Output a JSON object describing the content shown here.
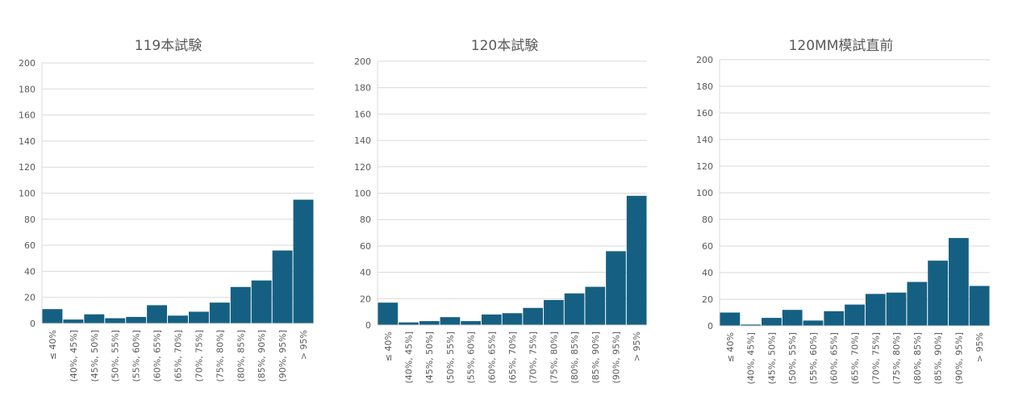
{
  "colors": {
    "bar": "#156082",
    "grid": "#d9d9d9",
    "text": "#595959"
  },
  "chart_data": [
    {
      "type": "bar",
      "title": "119本試験",
      "categories": [
        "≤ 40%",
        "(40%, 45%]",
        "(45%, 50%]",
        "(50%, 55%]",
        "(55%, 60%]",
        "(60%, 65%]",
        "(65%, 70%]",
        "(70%, 75%]",
        "(75%, 80%]",
        "(80%, 85%]",
        "(85%, 90%]",
        "(90%, 95%]",
        "> 95%"
      ],
      "values": [
        11,
        3,
        7,
        4,
        5,
        14,
        6,
        9,
        16,
        28,
        33,
        56,
        95
      ],
      "ylim": [
        0,
        200
      ],
      "yticks": [
        "0",
        "20",
        "40",
        "60",
        "80",
        "100",
        "120",
        "140",
        "160",
        "180",
        "200"
      ],
      "grid": true
    },
    {
      "type": "bar",
      "title": "120本試験",
      "categories": [
        "≤ 40%",
        "(40%, 45%]",
        "(45%, 50%]",
        "(50%, 55%]",
        "(55%, 60%]",
        "(60%, 65%]",
        "(65%, 70%]",
        "(70%, 75%]",
        "(75%, 80%]",
        "(80%, 85%]",
        "(85%, 90%]",
        "(90%, 95%]",
        "> 95%"
      ],
      "values": [
        17,
        2,
        3,
        6,
        3,
        8,
        9,
        13,
        19,
        24,
        29,
        56,
        98
      ],
      "ylim": [
        0,
        200
      ],
      "yticks": [
        "0",
        "20",
        "40",
        "60",
        "80",
        "100",
        "120",
        "140",
        "160",
        "180",
        "200"
      ],
      "grid": true
    },
    {
      "type": "bar",
      "title": "120MM模試直前",
      "categories": [
        "≤ 40%",
        "(40%, 45%]",
        "(45%, 50%]",
        "(50%, 55%]",
        "(55%, 60%]",
        "(60%, 65%]",
        "(65%, 70%]",
        "(70%, 75%]",
        "(75%, 80%]",
        "(80%, 85%]",
        "(85%, 90%]",
        "(90%, 95%]",
        "> 95%"
      ],
      "values": [
        10,
        1,
        6,
        12,
        4,
        11,
        16,
        24,
        25,
        33,
        49,
        66,
        30
      ],
      "ylim": [
        0,
        200
      ],
      "yticks": [
        "0",
        "20",
        "40",
        "60",
        "80",
        "100",
        "120",
        "140",
        "160",
        "180",
        "200"
      ],
      "grid": true
    }
  ]
}
